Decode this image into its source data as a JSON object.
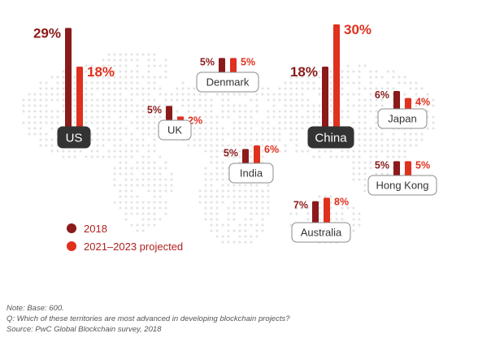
{
  "chart_data": {
    "type": "bar",
    "title": "",
    "series": [
      {
        "name": "2018",
        "color": "#8b1a1a"
      },
      {
        "name": "2021–2023 projected",
        "color": "#e0301e"
      }
    ],
    "territories": [
      {
        "name": "US",
        "values": [
          29,
          18
        ],
        "labels": [
          "29%",
          "18%"
        ],
        "highlight": true
      },
      {
        "name": "UK",
        "values": [
          5,
          2
        ],
        "labels": [
          "5%",
          "2%"
        ],
        "highlight": false
      },
      {
        "name": "Denmark",
        "values": [
          5,
          5
        ],
        "labels": [
          "5%",
          "5%"
        ],
        "highlight": false
      },
      {
        "name": "India",
        "values": [
          5,
          6
        ],
        "labels": [
          "5%",
          "6%"
        ],
        "highlight": false
      },
      {
        "name": "China",
        "values": [
          18,
          30
        ],
        "labels": [
          "18%",
          "30%"
        ],
        "highlight": true
      },
      {
        "name": "Japan",
        "values": [
          6,
          4
        ],
        "labels": [
          "6%",
          "4%"
        ],
        "highlight": false
      },
      {
        "name": "Hong Kong",
        "values": [
          5,
          5
        ],
        "labels": [
          "5%",
          "5%"
        ],
        "highlight": false
      },
      {
        "name": "Australia",
        "values": [
          7,
          8
        ],
        "labels": [
          "7%",
          "8%"
        ],
        "highlight": false
      }
    ],
    "legend": "bottom-left"
  },
  "notes": {
    "base": "Note: Base: 600.",
    "question": "Q: Which of these territories are most advanced in developing blockchain projects?",
    "source": "Source: PwC Global Blockchain survey, 2018"
  }
}
